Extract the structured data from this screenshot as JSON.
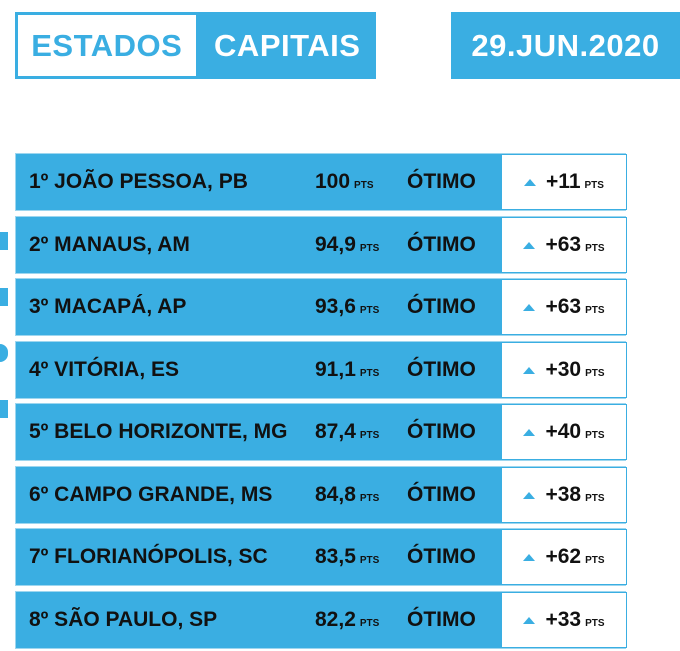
{
  "tabs": [
    {
      "label": "ESTADOS",
      "active": false
    },
    {
      "label": "CAPITAIS",
      "active": true
    }
  ],
  "date": "29.JUN.2020",
  "colors": {
    "accent": "#3aaee2",
    "text": "#111111",
    "background": "#ffffff"
  },
  "unit_label": "PTS",
  "change_icon": "triangle-up-icon",
  "ranking": [
    {
      "name": "1º JOÃO PESSOA, PB",
      "score": "100",
      "status": "ÓTIMO",
      "change": "+11"
    },
    {
      "name": "2º MANAUS, AM",
      "score": "94,9",
      "status": "ÓTIMO",
      "change": "+63"
    },
    {
      "name": "3º MACAPÁ, AP",
      "score": "93,6",
      "status": "ÓTIMO",
      "change": "+63"
    },
    {
      "name": "4º VITÓRIA, ES",
      "score": "91,1",
      "status": "ÓTIMO",
      "change": "+30"
    },
    {
      "name": "5º BELO HORIZONTE, MG",
      "score": "87,4",
      "status": "ÓTIMO",
      "change": "+40"
    },
    {
      "name": "6º CAMPO GRANDE, MS",
      "score": "84,8",
      "status": "ÓTIMO",
      "change": "+38"
    },
    {
      "name": "7º FLORIANÓPOLIS, SC",
      "score": "83,5",
      "status": "ÓTIMO",
      "change": "+62"
    },
    {
      "name": "8º SÃO PAULO, SP",
      "score": "82,2",
      "status": "ÓTIMO",
      "change": "+33"
    }
  ]
}
